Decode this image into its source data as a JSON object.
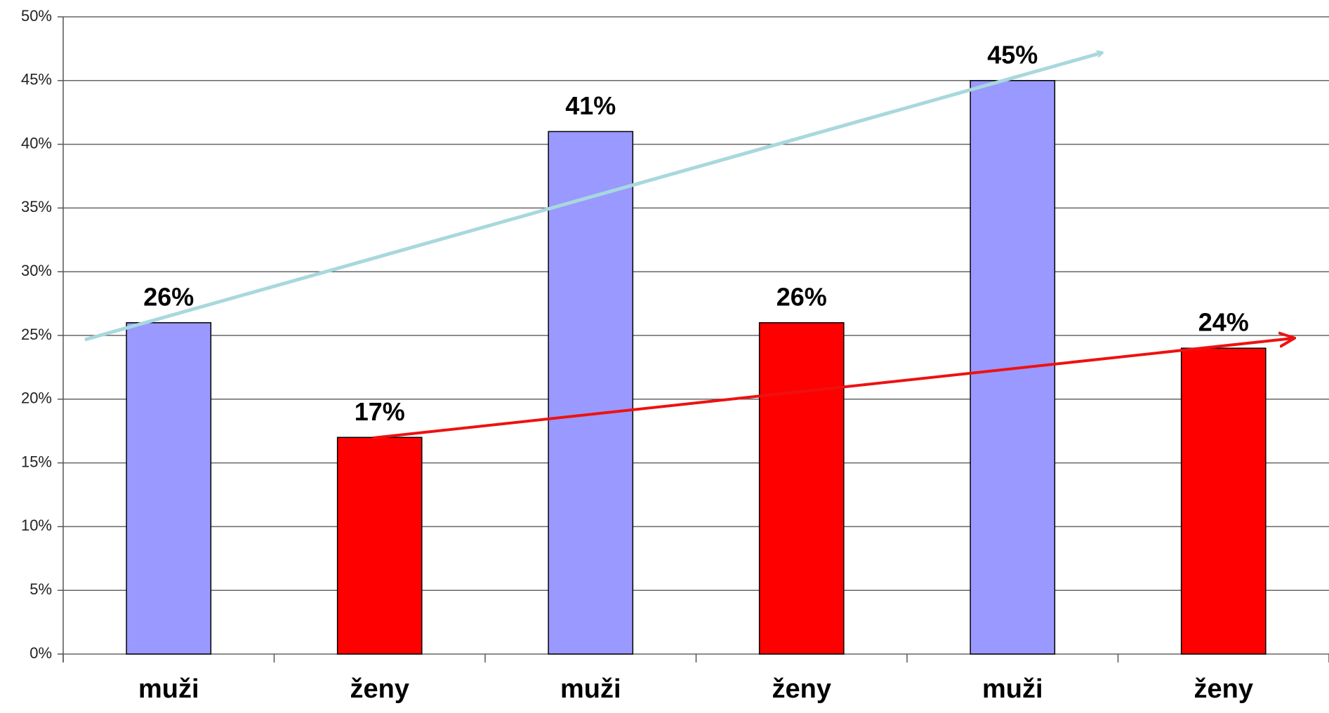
{
  "chart_data": {
    "type": "bar",
    "categories": [
      "muži",
      "ženy",
      "muži",
      "ženy",
      "muži",
      "ženy"
    ],
    "values": [
      26,
      17,
      41,
      26,
      45,
      24
    ],
    "value_labels": [
      "26%",
      "17%",
      "41%",
      "26%",
      "45%",
      "24%"
    ],
    "colors": [
      "#9999ff",
      "#ff0000",
      "#9999ff",
      "#ff0000",
      "#9999ff",
      "#ff0000"
    ],
    "ylim": [
      0,
      50
    ],
    "yticks": [
      {
        "value": 0,
        "label": "0%"
      },
      {
        "value": 5,
        "label": "5%"
      },
      {
        "value": 10,
        "label": "10%"
      },
      {
        "value": 15,
        "label": "15%"
      },
      {
        "value": 20,
        "label": "20%"
      },
      {
        "value": 25,
        "label": "25%"
      },
      {
        "value": 30,
        "label": "30%"
      },
      {
        "value": 35,
        "label": "35%"
      },
      {
        "value": 40,
        "label": "40%"
      },
      {
        "value": 45,
        "label": "45%"
      },
      {
        "value": 50,
        "label": "50%"
      }
    ],
    "grid": true
  }
}
